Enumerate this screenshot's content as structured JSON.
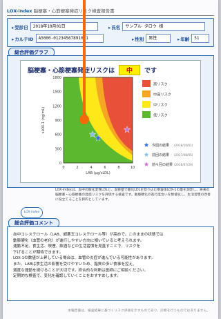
{
  "header": {
    "logo": "LOX-index",
    "title": "脳梗塞・心筋梗塞発症リスク検査報告書"
  },
  "patient": {
    "date_label": "受診日",
    "date_value": "2018年10月01日",
    "name_label": "氏名",
    "name_value": "サンプル タロウ 様",
    "id_label": "カルテID",
    "id_value": "A5000-01234567891091",
    "sex_label": "性別",
    "sex_value": "男性",
    "age_label": "年齢",
    "age_value": "51"
  },
  "sections": {
    "graph": "総合評価グラフ",
    "comment": "総合評価コメント"
  },
  "chart_data": {
    "type": "scatter",
    "title_prefix": "脳梗塞・心筋梗塞発症リスクは",
    "risk_value": "中",
    "title_suffix": "です",
    "xlabel": "LAB (μg/cLDL)",
    "ylabel": "sLOX-1 (ng/mL)",
    "xlim": [
      0,
      10
    ],
    "ylim": [
      0,
      1800
    ],
    "xticks": [
      "0",
      "2",
      "4",
      "6",
      "8",
      "10"
    ],
    "yticks": [
      "0",
      "300",
      "600",
      "900",
      "1200",
      "1500",
      "1800"
    ],
    "legend_risk": [
      "高リスク",
      "中高リスク",
      "中リスク",
      "低リスク"
    ],
    "legend_colors": [
      "#e8503a",
      "#f5a623",
      "#ffe81a",
      "#5cb82e"
    ],
    "points": [
      {
        "name": "今回の結果",
        "date": "(2018/10/01)",
        "x": 5.0,
        "y": 520,
        "color": "#3a6fd8"
      },
      {
        "name": "前回の結果",
        "date": "(2017/08/05)",
        "x": 4.2,
        "y": 600,
        "color": "#8ac0e8"
      },
      {
        "name": "前々回の結果",
        "date": "(2016/07/20)",
        "x": 9.2,
        "y": 700,
        "color": "#c977c9"
      }
    ]
  },
  "mid_text": "LOX-indexは、血中の酸化変性LDLと、血管壁で酸化LDLを取り込む受容体LOX-1の量を測定し、将来の脳梗塞・心筋梗塞の発症リスクを評価する検査です。動脈硬化の進行度合いを数値化し、生活習慣の改善に役立てることを目的としています。",
  "logo_small": "LOX-index",
  "comment_text": "血中コレステロール（LAB、超悪玉コレステロール等）が高めで、このままの状態では\n動脈硬化（血管の老化）が進行しやすい方向に傾いていると考えられます。\n運動不足、食生活、喫煙、飲酒などの生活習慣を見直すことで、リスクを\n下げることが期待できます。\nLOX-1の数値が上昇している場合は、血管の炎症が進んでいる可能性があります。\nまた、LABは食生活の影響を受けやすいため、脂質の多い食事を控え、\n適度な運動を続けることが大切です。終合的な判断は医師にご相談ください。\n定期的な検査で、変化を確認していくことをおすすめします。",
  "footer": "本報告書は、検査結果に基づくリスク評価を示すものであり、診断を行うものではありません。",
  "colors": {
    "accent": "#2a6db3",
    "pointer": "#f26a0a"
  }
}
